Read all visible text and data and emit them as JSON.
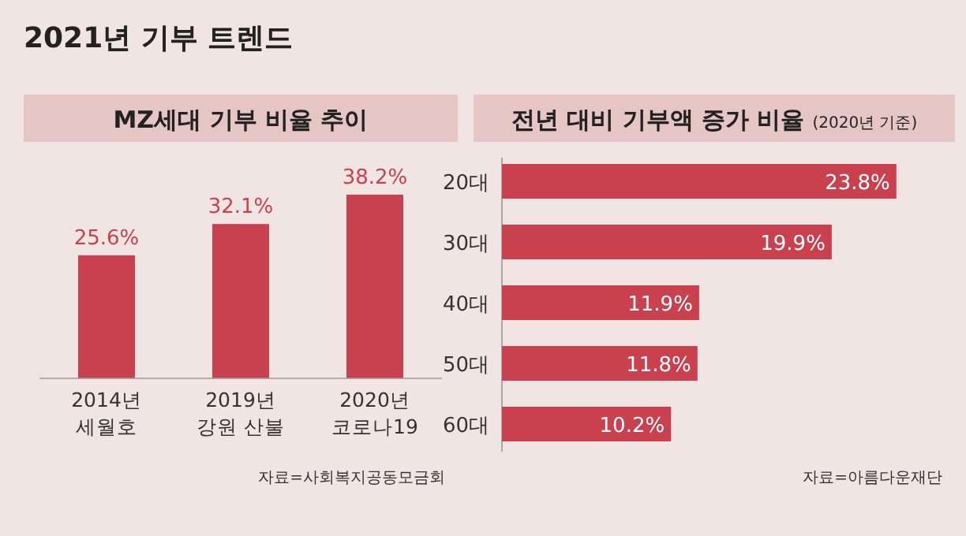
{
  "chart_data": [
    {
      "type": "bar",
      "title": "2021년 기부 트렌드",
      "subtitle": "MZ세대 기부 비율 추이",
      "categories": [
        "2014년 세월호",
        "2019년 강원 산불",
        "2020년 코로나19"
      ],
      "values": [
        25.6,
        32.1,
        38.2
      ],
      "value_labels": [
        "25.6%",
        "32.1%",
        "38.2%"
      ],
      "color": "#c9414f",
      "annotations": [
        "자료=사회복지공동모금회"
      ]
    },
    {
      "type": "bar",
      "orientation": "horizontal",
      "title": "전년 대비 기부액 증가 비율",
      "subtitle": "(2020년 기준)",
      "categories": [
        "20대",
        "30대",
        "40대",
        "50대",
        "60대"
      ],
      "values": [
        23.8,
        19.9,
        11.9,
        11.8,
        10.2
      ],
      "value_labels": [
        "23.8%",
        "19.9%",
        "11.9%",
        "11.8%",
        "10.2%"
      ],
      "color": "#c9414f",
      "annotations": [
        "자료=아름다운재단"
      ]
    }
  ]
}
